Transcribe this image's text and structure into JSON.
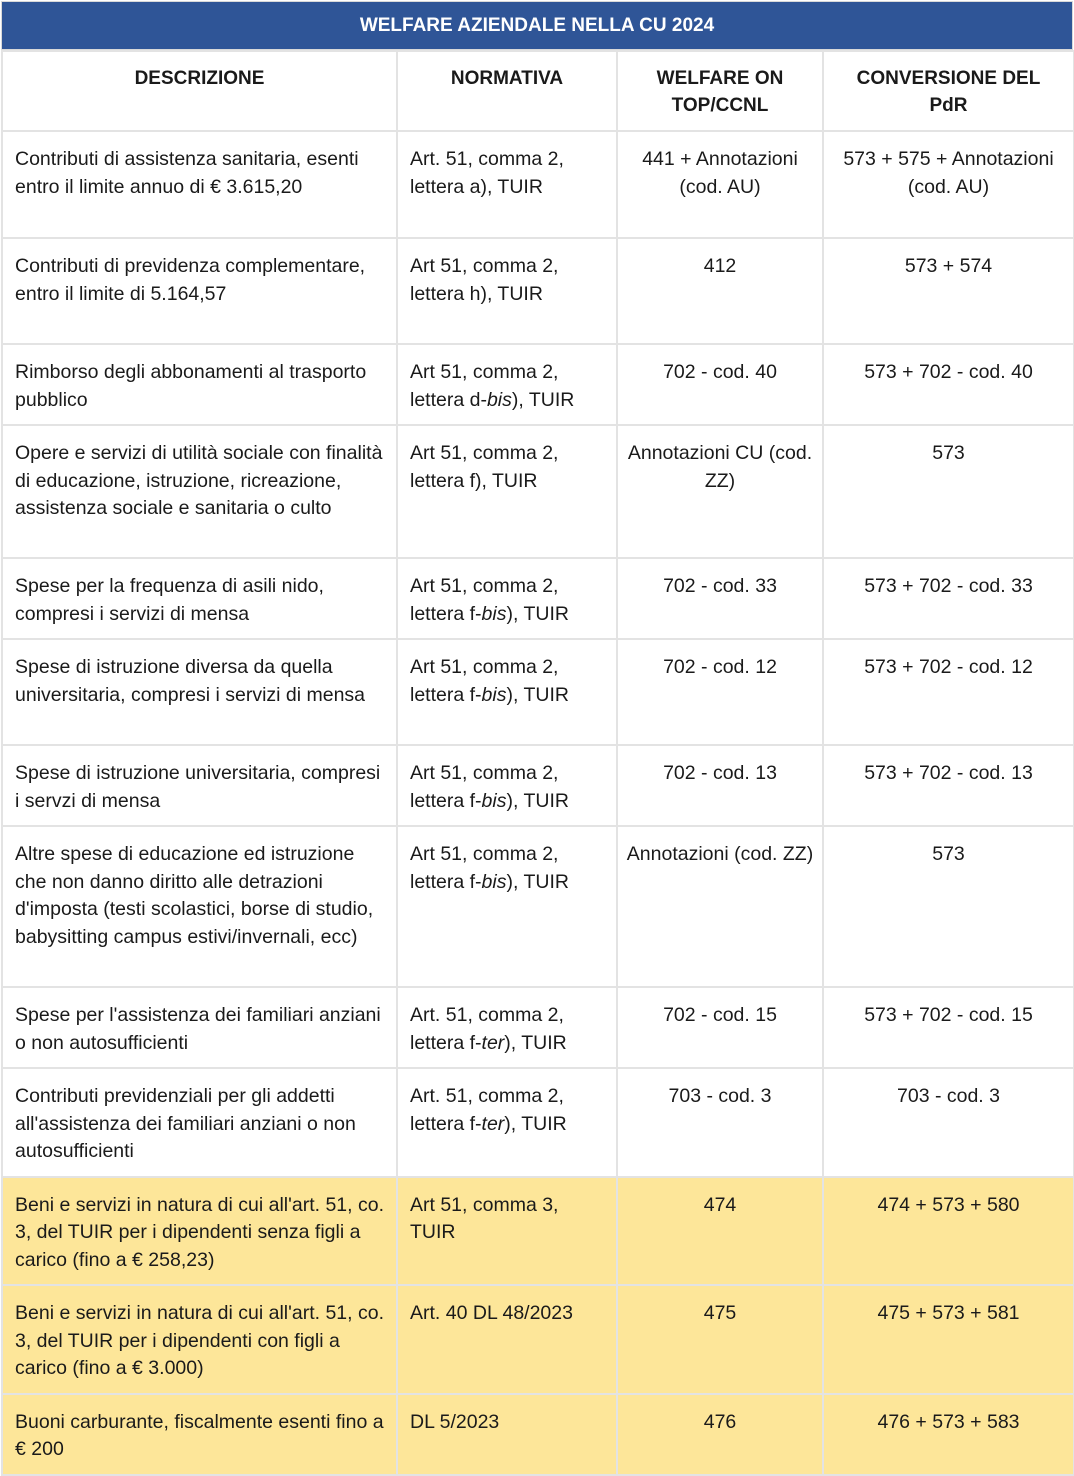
{
  "title": "WELFARE AZIENDALE NELLA CU 2024",
  "columns": {
    "descrizione": "DESCRIZIONE",
    "normativa": "NORMATIVA",
    "welfare_on_top": "WELFARE ON\nTOP/CCNL",
    "conversione": "CONVERSIONE DEL\nPdR"
  },
  "colors": {
    "header_bg": "#2f5597",
    "highlight_bg": "#fde699",
    "border": "#e3e3e3"
  },
  "rows": [
    {
      "descrizione": "Contributi di assistenza sanitaria, esenti entro il limite annuo di € 3.615,20",
      "normativa_pre": "Art. 51, comma 2, lettera a), TUIR",
      "normativa_ital": "",
      "normativa_post": "",
      "welfare": "441 + Annotazioni (cod. AU)",
      "conversione": "573 + 575 + Annotazioni (cod. AU)",
      "highlight": false
    },
    {
      "descrizione": "Contributi di previdenza complementare, entro il limite di 5.164,57",
      "normativa_pre": "Art 51, comma 2, lettera h), TUIR",
      "normativa_ital": "",
      "normativa_post": "",
      "welfare": "412",
      "conversione": "573 + 574",
      "highlight": false
    },
    {
      "descrizione": "Rimborso degli abbonamenti al trasporto pubblico",
      "normativa_pre": "Art 51, comma 2, lettera d-",
      "normativa_ital": "bis",
      "normativa_post": "), TUIR",
      "welfare": "702 - cod. 40",
      "conversione": "573 + 702 - cod. 40",
      "highlight": false
    },
    {
      "descrizione": "Opere e servizi di utilità sociale con finalità di educazione, istruzione, ricreazione, assistenza sociale e sanitaria o culto",
      "normativa_pre": "Art 51, comma 2, lettera f), TUIR",
      "normativa_ital": "",
      "normativa_post": "",
      "welfare": "Annotazioni CU (cod. ZZ)",
      "conversione": "573",
      "highlight": false
    },
    {
      "descrizione": "Spese per la frequenza di asili nido, compresi i servizi di mensa",
      "normativa_pre": "Art 51, comma 2, lettera f-",
      "normativa_ital": "bis",
      "normativa_post": "), TUIR",
      "welfare": "702 - cod. 33",
      "conversione": "573 + 702 - cod. 33",
      "highlight": false
    },
    {
      "descrizione": "Spese di istruzione diversa da quella universitaria, compresi i servizi di mensa",
      "normativa_pre": "Art 51, comma 2, lettera f-",
      "normativa_ital": "bis",
      "normativa_post": "), TUIR",
      "welfare": "702 - cod. 12",
      "conversione": "573 + 702 - cod. 12",
      "highlight": false
    },
    {
      "descrizione": "Spese di istruzione universitaria, compresi i servzi di mensa",
      "normativa_pre": "Art 51, comma 2, lettera f-",
      "normativa_ital": "bis",
      "normativa_post": "), TUIR",
      "welfare": "702 - cod. 13",
      "conversione": "573 + 702 - cod. 13",
      "highlight": false
    },
    {
      "descrizione": "Altre spese di educazione ed istruzione che non danno diritto alle detrazioni d'imposta (testi scolastici, borse di studio, babysitting campus estivi/invernali, ecc)",
      "normativa_pre": "Art 51, comma 2, lettera f-",
      "normativa_ital": "bis",
      "normativa_post": "), TUIR",
      "welfare": "Annotazioni (cod. ZZ)",
      "conversione": "573",
      "highlight": false
    },
    {
      "descrizione": "Spese per l'assistenza dei familiari anziani o non autosufficienti",
      "normativa_pre": "Art. 51, comma 2, lettera f-",
      "normativa_ital": "ter",
      "normativa_post": "), TUIR",
      "welfare": "702 - cod. 15",
      "conversione": "573 + 702 - cod. 15",
      "highlight": false
    },
    {
      "descrizione": "Contributi previdenziali per gli addetti all'assistenza dei familiari anziani o non autosufficienti",
      "normativa_pre": "Art. 51, comma 2, lettera f-",
      "normativa_ital": "ter",
      "normativa_post": "), TUIR",
      "welfare": "703 - cod. 3",
      "conversione": "703 - cod. 3",
      "highlight": false
    },
    {
      "descrizione": "Beni e servizi in natura di cui all'art. 51, co. 3, del TUIR per i dipendenti senza figli a carico (fino a € 258,23)",
      "normativa_pre": "Art 51, comma 3, TUIR",
      "normativa_ital": "",
      "normativa_post": "",
      "welfare": "474",
      "conversione": "474 + 573 + 580",
      "highlight": true
    },
    {
      "descrizione": "Beni e servizi in natura di cui all'art. 51, co. 3, del TUIR per i dipendenti con figli a carico (fino a € 3.000)",
      "normativa_pre": "Art. 40 DL 48/2023",
      "normativa_ital": "",
      "normativa_post": "",
      "welfare": "475",
      "conversione": "475 + 573 + 581",
      "highlight": true
    },
    {
      "descrizione": "Buoni carburante, fiscalmente esenti fino a € 200",
      "normativa_pre": "DL 5/2023",
      "normativa_ital": "",
      "normativa_post": "",
      "welfare": "476",
      "conversione": "476 + 573 + 583",
      "highlight": true
    }
  ]
}
